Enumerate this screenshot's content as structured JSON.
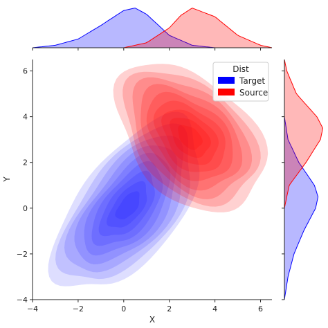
{
  "chart_data": {
    "type": "jointplot-kde",
    "title": "",
    "xlabel": "X",
    "ylabel": "Y",
    "xlim": [
      -4,
      6.5
    ],
    "ylim": [
      -4,
      6.5
    ],
    "xticks": [
      -4,
      -2,
      0,
      2,
      4,
      6
    ],
    "yticks": [
      -4,
      -2,
      0,
      2,
      4,
      6
    ],
    "xtick_labels": [
      "−4",
      "−2",
      "0",
      "2",
      "4",
      "6"
    ],
    "ytick_labels": [
      "−4",
      "−2",
      "0",
      "2",
      "4",
      "6"
    ],
    "legend": {
      "title": "Dist",
      "position": "top-right"
    },
    "series": [
      {
        "name": "Target",
        "color": "#0000ff",
        "mean": [
          0.2,
          0.1
        ],
        "std": [
          1.25,
          1.45
        ],
        "correlation": 0.6,
        "marginal_x": {
          "x": [
            -4.0,
            -3.0,
            -2.0,
            -1.0,
            0.0,
            0.5,
            1.0,
            2.0,
            3.0,
            4.0
          ],
          "density": [
            0.0,
            0.02,
            0.07,
            0.18,
            0.3,
            0.32,
            0.27,
            0.1,
            0.02,
            0.0
          ]
        },
        "marginal_y": {
          "y": [
            -4.0,
            -3.0,
            -2.0,
            -1.0,
            0.0,
            0.5,
            1.0,
            2.0,
            3.0,
            4.0
          ],
          "density": [
            0.0,
            0.03,
            0.08,
            0.16,
            0.26,
            0.28,
            0.25,
            0.12,
            0.03,
            0.0
          ]
        }
      },
      {
        "name": "Source",
        "color": "#ff0000",
        "mean": [
          2.9,
          3.1
        ],
        "std": [
          1.25,
          1.25
        ],
        "correlation": -0.4,
        "marginal_x": {
          "x": [
            0.0,
            1.0,
            2.0,
            2.5,
            3.0,
            4.0,
            5.0,
            6.0,
            6.5
          ],
          "density": [
            0.0,
            0.04,
            0.16,
            0.26,
            0.32,
            0.25,
            0.1,
            0.02,
            0.0
          ]
        },
        "marginal_y": {
          "y": [
            0.0,
            1.0,
            2.0,
            3.0,
            3.5,
            4.0,
            5.0,
            6.0,
            6.5
          ],
          "density": [
            0.0,
            0.04,
            0.18,
            0.3,
            0.32,
            0.27,
            0.1,
            0.02,
            0.0
          ]
        }
      }
    ]
  }
}
